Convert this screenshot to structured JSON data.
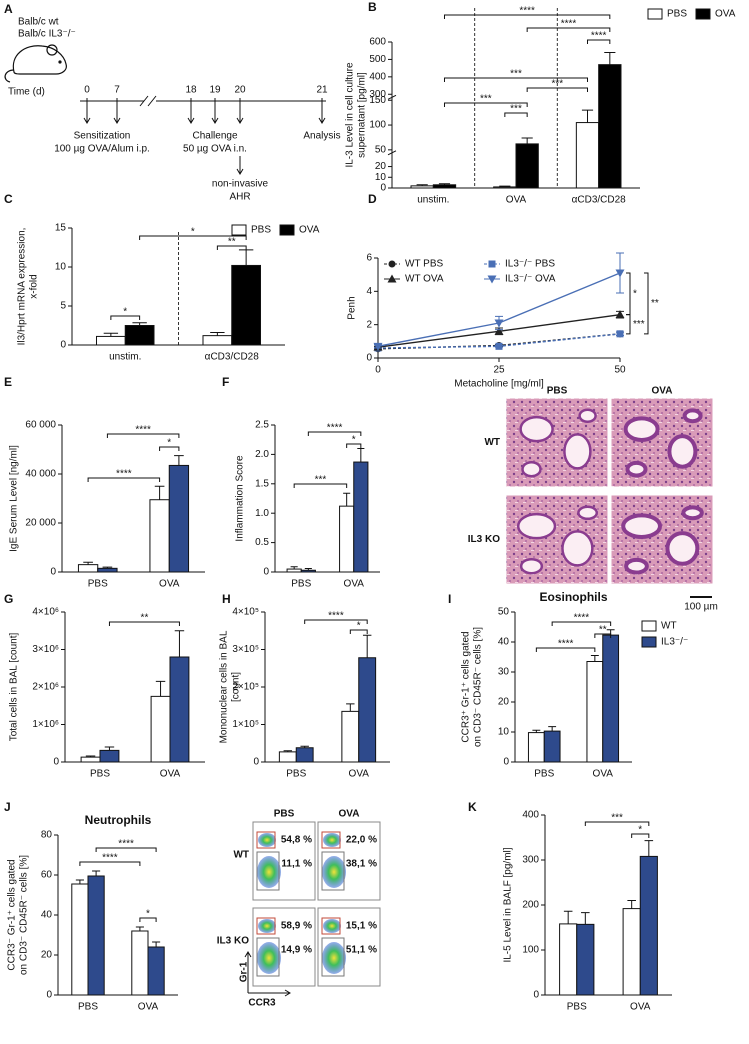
{
  "timeline": {
    "panel": "A",
    "strains": [
      "Balb/c wt",
      "Balb/c IL3⁻/⁻"
    ],
    "axis_label": "Time (d)",
    "days": [
      "0",
      "7",
      "18",
      "19",
      "20",
      "21"
    ],
    "steps": [
      {
        "title": "Sensitization",
        "detail": "100 µg OVA/Alum i.p."
      },
      {
        "title": "Challenge",
        "detail": "50 µg OVA i.n."
      },
      {
        "title": "non-invasive",
        "detail": "AHR"
      },
      {
        "title": "Analysis"
      }
    ]
  },
  "histology": {
    "columns": [
      "PBS",
      "OVA"
    ],
    "rows": [
      "WT",
      "IL3 KO"
    ],
    "scale_bar": "100 µm"
  },
  "flow": {
    "columns": [
      "PBS",
      "OVA"
    ],
    "rows": [
      "WT",
      "IL3 KO"
    ],
    "gates": [
      [
        [
          "54,8 %",
          "11,1 %"
        ],
        [
          "22,0 %",
          "38,1 %"
        ]
      ],
      [
        [
          "58,9 %",
          "14,9 %"
        ],
        [
          "15,1 %",
          "51,1 %"
        ]
      ]
    ],
    "y_axis": "Gr-1",
    "x_axis": "CCR3"
  },
  "chart_data": [
    {
      "type": "bar",
      "panel": "B",
      "ylabel": [
        "IL-3 Level in cell culture",
        "supernatant [pg/ml]"
      ],
      "categories": [
        "unstim.",
        "OVA",
        "αCD3/CD28"
      ],
      "series": [
        {
          "name": "PBS",
          "color": "#ffffff",
          "values": [
            2,
            1,
            105
          ],
          "errors": [
            1,
            0.8,
            25
          ]
        },
        {
          "name": "OVA",
          "color": "#000000",
          "values": [
            3,
            62,
            470
          ],
          "errors": [
            1,
            12,
            70
          ]
        }
      ],
      "ylim": [
        0,
        600
      ],
      "ysegments": [
        [
          0,
          30
        ],
        [
          50,
          150
        ],
        [
          300,
          600
        ]
      ],
      "yticks": [
        0,
        10,
        20,
        50,
        100,
        150,
        300,
        400,
        500,
        600
      ],
      "legend": "top-right",
      "annotations": [
        "****",
        "****",
        "****",
        "***",
        "***",
        "***",
        "***"
      ]
    },
    {
      "type": "bar",
      "panel": "C",
      "ylabel": [
        "Il3/Hprt mRNA expression,",
        "x-fold"
      ],
      "categories": [
        "unstim.",
        "αCD3/CD28"
      ],
      "series": [
        {
          "name": "PBS",
          "color": "#ffffff",
          "values": [
            1.1,
            1.2
          ],
          "errors": [
            0.4,
            0.4
          ]
        },
        {
          "name": "OVA",
          "color": "#000000",
          "values": [
            2.5,
            10.2
          ],
          "errors": [
            0.35,
            2
          ]
        }
      ],
      "ylim": [
        0,
        15
      ],
      "yticks": [
        0,
        5,
        10,
        15
      ],
      "legend": "top",
      "annotations": [
        "*",
        "*",
        "**"
      ]
    },
    {
      "type": "line",
      "panel": "D",
      "ylabel": "Penh",
      "xlabel": "Metacholine [mg/ml]",
      "x": [
        0,
        25,
        50
      ],
      "xlim": [
        0,
        50
      ],
      "xticks": [
        0,
        25,
        50
      ],
      "ylim": [
        0,
        6
      ],
      "yticks": [
        0,
        2,
        4,
        6
      ],
      "legend": "inside",
      "series": [
        {
          "name": "WT PBS",
          "color": "#222222",
          "marker": "circle",
          "dash": true,
          "values": [
            0.55,
            0.75,
            1.45
          ],
          "errors": [
            0.05,
            0.05,
            0.1
          ]
        },
        {
          "name": "IL3⁻/⁻ PBS",
          "color": "#4a6fb5",
          "marker": "square",
          "dash": true,
          "values": [
            0.6,
            0.7,
            1.45
          ],
          "errors": [
            0.05,
            0.05,
            0.1
          ]
        },
        {
          "name": "WT OVA",
          "color": "#222222",
          "marker": "triangle",
          "dash": false,
          "values": [
            0.65,
            1.6,
            2.6
          ],
          "errors": [
            0.05,
            0.2,
            0.2
          ]
        },
        {
          "name": "IL3⁻/⁻ OVA",
          "color": "#4a6fb5",
          "marker": "triangle-down",
          "dash": false,
          "values": [
            0.7,
            2.1,
            5.1
          ],
          "errors": [
            0.1,
            0.4,
            1.2
          ]
        }
      ],
      "annotations": [
        "*",
        "***",
        "**"
      ]
    },
    {
      "type": "bar",
      "panel": "E",
      "ylabel": "IgE Serum Level [ng/ml]",
      "categories": [
        "PBS",
        "OVA"
      ],
      "series": [
        {
          "color": "#ffffff",
          "values": [
            3000,
            29500
          ],
          "errors": [
            1000,
            5500
          ]
        },
        {
          "color": "#2e4a8c",
          "values": [
            1500,
            43500
          ],
          "errors": [
            500,
            4000
          ]
        }
      ],
      "ylim": [
        0,
        60000
      ],
      "yticks": [
        0,
        {
          "value": 20000,
          "label": "20 000"
        },
        {
          "value": 40000,
          "label": "40 000"
        },
        {
          "value": 60000,
          "label": "60 000"
        }
      ],
      "annotations": [
        "****",
        "*",
        "****"
      ]
    },
    {
      "type": "bar",
      "panel": "F",
      "ylabel": "Inflammation Score",
      "categories": [
        "PBS",
        "OVA"
      ],
      "series": [
        {
          "color": "#ffffff",
          "values": [
            0.05,
            1.12
          ],
          "errors": [
            0.04,
            0.22
          ]
        },
        {
          "color": "#2e4a8c",
          "values": [
            0.03,
            1.87
          ],
          "errors": [
            0.03,
            0.23
          ]
        }
      ],
      "ylim": [
        0,
        2.5
      ],
      "yticks": [
        0,
        0.5,
        {
          "value": 1,
          "label": "1.0"
        },
        1.5,
        {
          "value": 2,
          "label": "2.0"
        },
        2.5
      ],
      "annotations": [
        "****",
        "*",
        "***"
      ]
    },
    {
      "type": "bar",
      "panel": "G",
      "ylabel": "Total cells in BAL [count]",
      "categories": [
        "PBS",
        "OVA"
      ],
      "series": [
        {
          "color": "#ffffff",
          "values": [
            130000,
            1750000
          ],
          "errors": [
            30000,
            400000
          ]
        },
        {
          "color": "#2e4a8c",
          "values": [
            310000,
            2800000
          ],
          "errors": [
            90000,
            700000
          ]
        }
      ],
      "ylim": [
        0,
        4000000
      ],
      "yticks": [
        0,
        {
          "value": 1000000,
          "label": "1×10⁶"
        },
        {
          "value": 2000000,
          "label": "2×10⁶"
        },
        {
          "value": 3000000,
          "label": "3×10⁶"
        },
        {
          "value": 4000000,
          "label": "4×10⁶"
        }
      ],
      "annotations": [
        "**"
      ]
    },
    {
      "type": "bar",
      "panel": "H",
      "ylabel": [
        "Mononuclear cells in BAL",
        "[count]"
      ],
      "categories": [
        "PBS",
        "OVA"
      ],
      "series": [
        {
          "color": "#ffffff",
          "values": [
            27000,
            135000
          ],
          "errors": [
            3000,
            20000
          ]
        },
        {
          "color": "#2e4a8c",
          "values": [
            38000,
            278000
          ],
          "errors": [
            4000,
            60000
          ]
        }
      ],
      "ylim": [
        0,
        400000
      ],
      "yticks": [
        0,
        {
          "value": 100000,
          "label": "1×10⁵"
        },
        {
          "value": 200000,
          "label": "2×10⁵"
        },
        {
          "value": 300000,
          "label": "3×10⁵"
        },
        {
          "value": 400000,
          "label": "4×10⁵"
        }
      ],
      "annotations": [
        "****",
        "*"
      ]
    },
    {
      "type": "bar",
      "panel": "I",
      "title": "Eosinophils",
      "ylabel": [
        "CCR3⁺ Gr-1⁺ cells gated",
        "on CD3⁻ CD45R⁻ cells [%]"
      ],
      "categories": [
        "PBS",
        "OVA"
      ],
      "series": [
        {
          "name": "WT",
          "color": "#ffffff",
          "values": [
            9.8,
            33.5
          ],
          "errors": [
            0.8,
            2
          ]
        },
        {
          "name": "IL3⁻/⁻",
          "color": "#2e4a8c",
          "values": [
            10.3,
            42.3
          ],
          "errors": [
            1.5,
            1.8
          ]
        }
      ],
      "ylim": [
        0,
        50
      ],
      "yticks": [
        0,
        10,
        20,
        30,
        40,
        50
      ],
      "legend": "right",
      "annotations": [
        "****",
        "**",
        "****"
      ]
    },
    {
      "type": "bar",
      "panel": "J",
      "title": "Neutrophils",
      "ylabel": [
        "CCR3⁻ Gr-1⁺ cells gated",
        "on CD3⁻ CD45R⁻ cells [%]"
      ],
      "categories": [
        "PBS",
        "OVA"
      ],
      "series": [
        {
          "color": "#ffffff",
          "values": [
            55.5,
            32
          ],
          "errors": [
            2,
            2
          ]
        },
        {
          "color": "#2e4a8c",
          "values": [
            59.5,
            24
          ],
          "errors": [
            2.5,
            2.5
          ]
        }
      ],
      "ylim": [
        0,
        80
      ],
      "yticks": [
        0,
        20,
        40,
        60,
        80
      ],
      "annotations": [
        "****",
        "****",
        "*"
      ]
    },
    {
      "type": "bar",
      "panel": "K",
      "ylabel": "IL-5 Level in BALF [pg/ml]",
      "categories": [
        "PBS",
        "OVA"
      ],
      "series": [
        {
          "color": "#ffffff",
          "values": [
            158,
            192
          ],
          "errors": [
            28,
            18
          ]
        },
        {
          "color": "#2e4a8c",
          "values": [
            157,
            308
          ],
          "errors": [
            26,
            35
          ]
        }
      ],
      "ylim": [
        0,
        400
      ],
      "yticks": [
        0,
        100,
        200,
        300,
        400
      ],
      "annotations": [
        "***",
        "*"
      ]
    }
  ]
}
